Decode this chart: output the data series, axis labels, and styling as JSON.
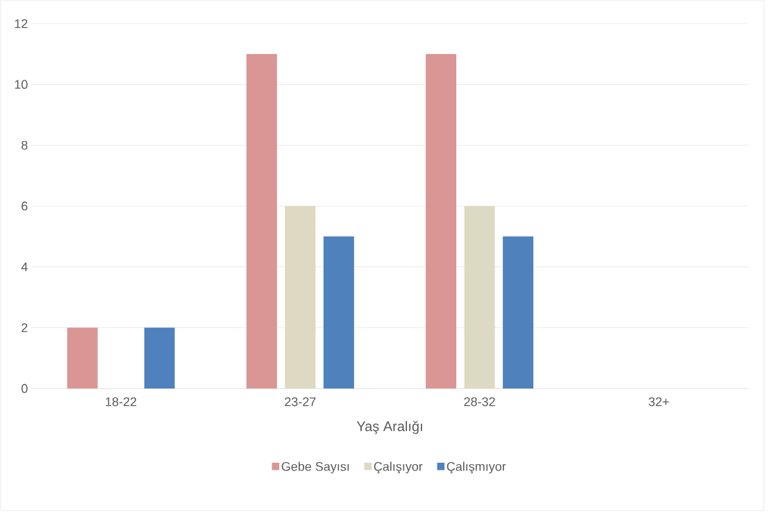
{
  "chart_data": {
    "type": "bar",
    "xlabel": "Yaş Aralığı",
    "categories": [
      "18-22",
      "23-27",
      "28-32",
      "32+"
    ],
    "series": [
      {
        "name": "Gebe Sayısı",
        "color": "#d99694",
        "values": [
          2,
          11,
          11,
          0
        ]
      },
      {
        "name": "Çalışıyor",
        "color": "#ddd9c3",
        "values": [
          0,
          6,
          6,
          0
        ]
      },
      {
        "name": "Çalışmıyor",
        "color": "#4f81bd",
        "values": [
          2,
          5,
          5,
          0
        ]
      }
    ],
    "ylim": [
      0,
      12
    ],
    "yticks": [
      0,
      2,
      4,
      6,
      8,
      10,
      12
    ],
    "grid": "y",
    "legend": "bottom"
  }
}
